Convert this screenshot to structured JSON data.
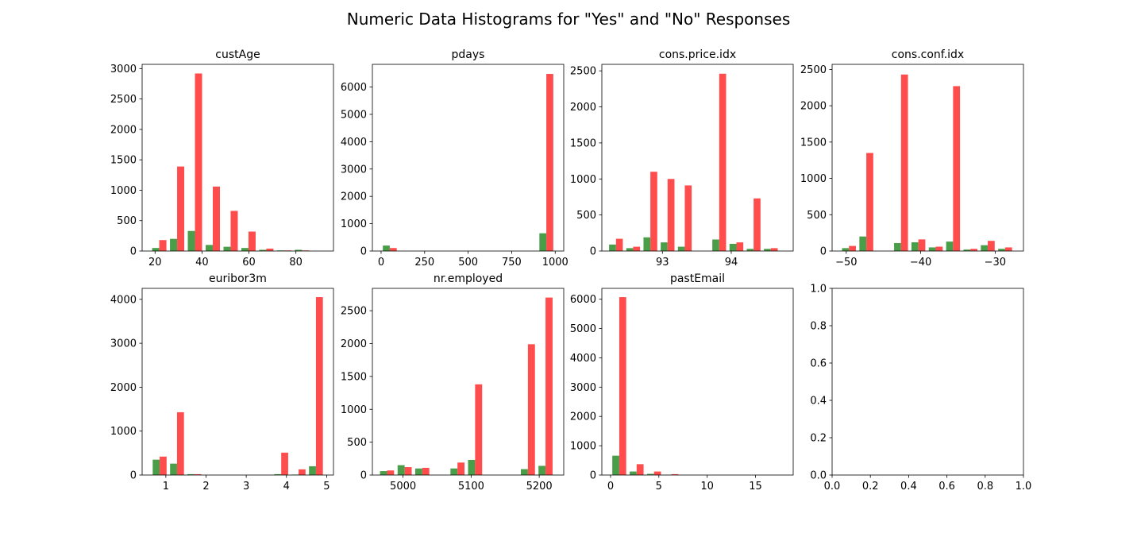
{
  "figure": {
    "title": "Numeric Data Histograms for \"Yes\" and \"No\" Responses",
    "colors": {
      "yes": "#4a9e4a",
      "no": "#ff4d4d"
    }
  },
  "chart_data": [
    {
      "type": "bar",
      "title": "custAge",
      "xlim": [
        14.5,
        96
      ],
      "ylim": [
        0,
        3070
      ],
      "xticks": [
        20,
        40,
        60,
        80
      ],
      "yticks": [
        0,
        500,
        1000,
        1500,
        2000,
        2500,
        3000
      ],
      "bin_edges": [
        18,
        25.6,
        33.2,
        40.8,
        48.4,
        56,
        63.6,
        71.2,
        78.8,
        86.4,
        94
      ],
      "series": [
        {
          "values": [
            50,
            200,
            330,
            100,
            70,
            50,
            20,
            10,
            20,
            0
          ]
        },
        {
          "values": [
            180,
            1390,
            2920,
            1060,
            660,
            320,
            40,
            10,
            10,
            0
          ]
        }
      ]
    },
    {
      "type": "bar",
      "title": "pdays",
      "xlim": [
        -50,
        1049
      ],
      "ylim": [
        0,
        6830
      ],
      "xticks": [
        0,
        250,
        500,
        750,
        1000
      ],
      "yticks": [
        0,
        1000,
        2000,
        3000,
        4000,
        5000,
        6000
      ],
      "bin_edges": [
        0,
        99.9,
        199.8,
        299.7,
        399.6,
        499.5,
        599.4,
        699.3,
        799.2,
        899.1,
        999
      ],
      "series": [
        {
          "values": [
            200,
            0,
            0,
            0,
            0,
            0,
            0,
            0,
            0,
            650
          ]
        },
        {
          "values": [
            110,
            0,
            0,
            0,
            0,
            0,
            0,
            0,
            0,
            6480
          ]
        }
      ]
    },
    {
      "type": "bar",
      "title": "cons.price.idx",
      "xlim": [
        92.12,
        94.9
      ],
      "ylim": [
        0,
        2590
      ],
      "xticks": [
        93,
        94
      ],
      "yticks": [
        0,
        500,
        1000,
        1500,
        2000,
        2500
      ],
      "bin_edges": [
        92.2,
        92.45,
        92.7,
        92.95,
        93.2,
        93.45,
        93.7,
        93.95,
        94.2,
        94.45,
        94.7
      ],
      "series": [
        {
          "values": [
            90,
            40,
            190,
            120,
            60,
            0,
            160,
            100,
            30,
            30
          ]
        },
        {
          "values": [
            170,
            60,
            1100,
            1000,
            910,
            0,
            2460,
            120,
            730,
            40
          ]
        }
      ]
    },
    {
      "type": "bar",
      "title": "cons.conf.idx",
      "xlim": [
        -51.9,
        -26.2
      ],
      "ylim": [
        0,
        2570
      ],
      "xticks": [
        -50,
        -40,
        -30
      ],
      "yticks": [
        0,
        500,
        1000,
        1500,
        2000,
        2500
      ],
      "bin_edges": [
        -50.8,
        -48.47,
        -46.14,
        -43.81,
        -41.48,
        -39.15,
        -36.82,
        -34.49,
        -32.16,
        -29.83,
        -27.5
      ],
      "series": [
        {
          "values": [
            40,
            200,
            0,
            110,
            120,
            50,
            130,
            20,
            80,
            30
          ]
        },
        {
          "values": [
            70,
            1350,
            0,
            2430,
            160,
            60,
            2270,
            30,
            140,
            50
          ]
        }
      ]
    },
    {
      "type": "bar",
      "title": "euribor3m",
      "xlim": [
        0.41,
        5.17
      ],
      "ylim": [
        0,
        4250
      ],
      "xticks": [
        1,
        2,
        3,
        4,
        5
      ],
      "yticks": [
        0,
        1000,
        2000,
        3000,
        4000
      ],
      "bin_edges": [
        0.63,
        1.062,
        1.494,
        1.926,
        2.358,
        2.79,
        3.222,
        3.654,
        4.086,
        4.518,
        4.95
      ],
      "series": [
        {
          "values": [
            350,
            260,
            20,
            0,
            0,
            0,
            0,
            20,
            10,
            200
          ]
        },
        {
          "values": [
            420,
            1430,
            20,
            0,
            0,
            0,
            0,
            510,
            130,
            4050
          ]
        }
      ]
    },
    {
      "type": "bar",
      "title": "nr.employed",
      "xlim": [
        4955,
        5236
      ],
      "ylim": [
        0,
        2840
      ],
      "xticks": [
        5000,
        5100,
        5200
      ],
      "yticks": [
        0,
        500,
        1000,
        1500,
        2000,
        2500
      ],
      "bin_edges": [
        4963.6,
        4989.46,
        5015.32,
        5041.18,
        5067.04,
        5092.9,
        5118.76,
        5144.62,
        5170.48,
        5196.34,
        5222.2
      ],
      "series": [
        {
          "values": [
            60,
            150,
            100,
            0,
            100,
            230,
            0,
            0,
            90,
            140
          ]
        },
        {
          "values": [
            70,
            120,
            110,
            0,
            190,
            1380,
            0,
            0,
            1990,
            2700
          ]
        }
      ]
    },
    {
      "type": "bar",
      "title": "pastEmail",
      "xlim": [
        -0.9,
        18.9
      ],
      "ylim": [
        0,
        6370
      ],
      "xticks": [
        0,
        5,
        10,
        15
      ],
      "yticks": [
        0,
        1000,
        2000,
        3000,
        4000,
        5000,
        6000
      ],
      "bin_edges": [
        0,
        1.8,
        3.6,
        5.4,
        7.2,
        9,
        10.8,
        12.6,
        14.4,
        16.2,
        18
      ],
      "series": [
        {
          "values": [
            660,
            120,
            40,
            10,
            0,
            0,
            0,
            0,
            0,
            0
          ]
        },
        {
          "values": [
            6070,
            370,
            120,
            30,
            0,
            0,
            0,
            0,
            0,
            0
          ]
        }
      ]
    },
    {
      "type": "bar",
      "title": "",
      "xlim": [
        0,
        1
      ],
      "ylim": [
        0,
        1
      ],
      "xticks": [
        0.0,
        0.2,
        0.4,
        0.6,
        0.8,
        1.0
      ],
      "yticks": [
        0.0,
        0.2,
        0.4,
        0.6,
        0.8,
        1.0
      ],
      "tick_format": "1dp",
      "bin_edges": [],
      "series": []
    }
  ]
}
